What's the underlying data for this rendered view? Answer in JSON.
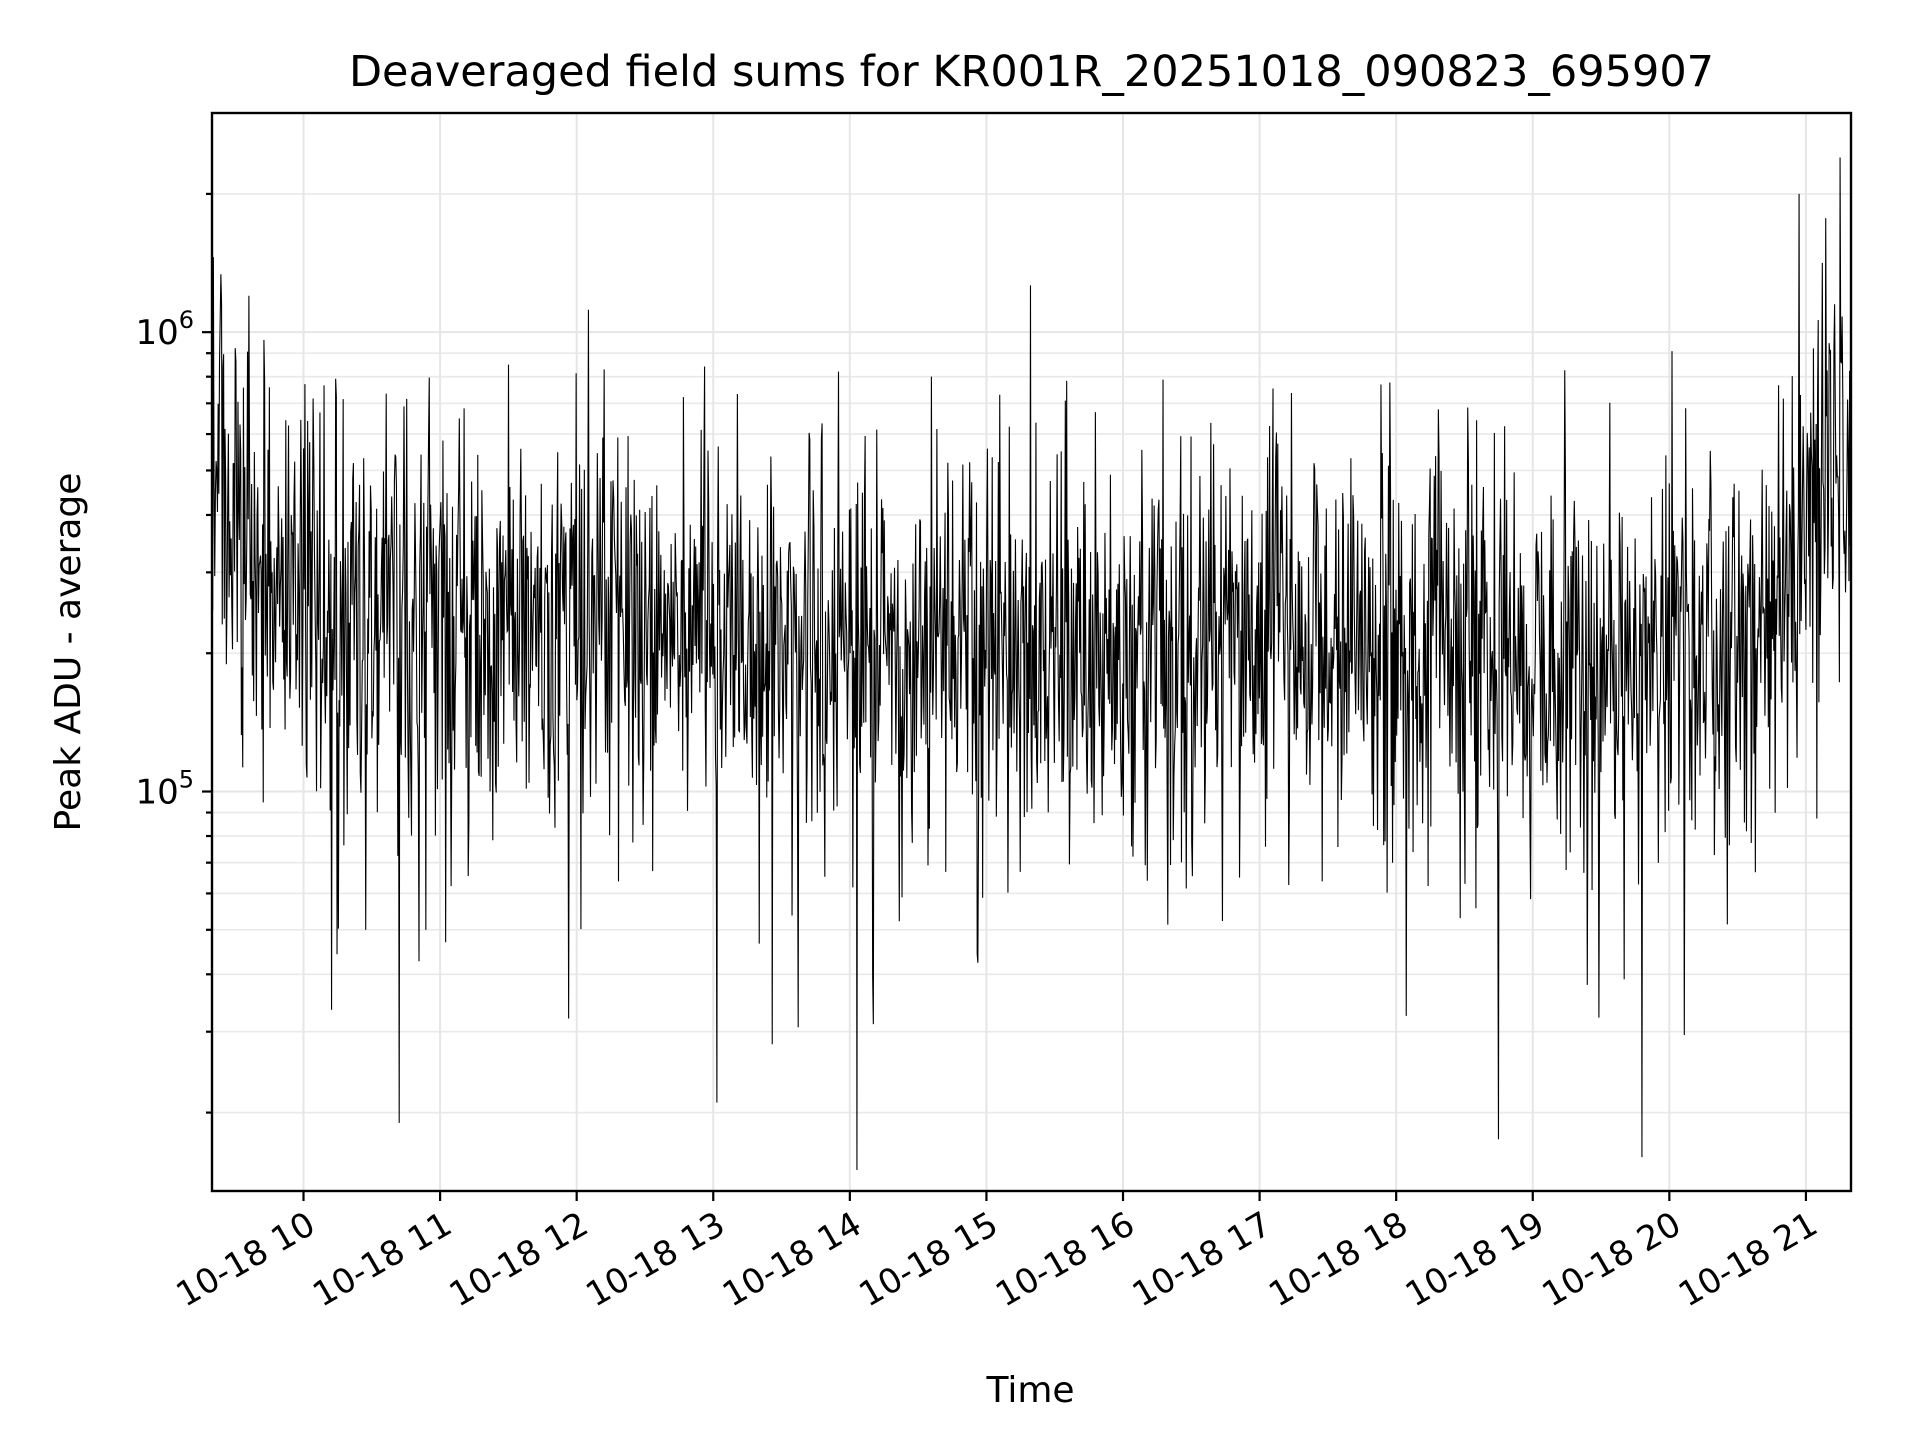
{
  "chart_data": {
    "type": "line",
    "title": "Deaveraged field sums for KR001R_20251018_090823_695907",
    "xlabel": "Time",
    "ylabel": "Peak ADU - average",
    "x_axis": {
      "kind": "datetime",
      "start_hour": 9.33,
      "end_hour": 21.33,
      "ticks": [
        {
          "hour": 10,
          "label": "10-18 10"
        },
        {
          "hour": 11,
          "label": "10-18 11"
        },
        {
          "hour": 12,
          "label": "10-18 12"
        },
        {
          "hour": 13,
          "label": "10-18 13"
        },
        {
          "hour": 14,
          "label": "10-18 14"
        },
        {
          "hour": 15,
          "label": "10-18 15"
        },
        {
          "hour": 16,
          "label": "10-18 16"
        },
        {
          "hour": 17,
          "label": "10-18 17"
        },
        {
          "hour": 18,
          "label": "10-18 18"
        },
        {
          "hour": 19,
          "label": "10-18 19"
        },
        {
          "hour": 20,
          "label": "10-18 20"
        },
        {
          "hour": 21,
          "label": "10-18 21"
        }
      ]
    },
    "y_axis": {
      "scale": "log",
      "ylim": [
        13500,
        3000000
      ],
      "major_ticks": [
        {
          "value": 100000,
          "base": "10",
          "exp": "5"
        },
        {
          "value": 1000000,
          "base": "10",
          "exp": "6"
        }
      ],
      "minor_ticks": [
        20000,
        30000,
        40000,
        50000,
        60000,
        70000,
        80000,
        90000,
        200000,
        300000,
        400000,
        500000,
        600000,
        700000,
        800000,
        900000,
        2000000
      ]
    },
    "grid": true,
    "series": [
      {
        "name": "field sums",
        "color": "#000000",
        "n_points": 2400,
        "baseline": [
          {
            "hour": 9.33,
            "value": 550000
          },
          {
            "hour": 9.6,
            "value": 300000
          },
          {
            "hour": 10.0,
            "value": 240000
          },
          {
            "hour": 11.0,
            "value": 215000
          },
          {
            "hour": 12.0,
            "value": 240000
          },
          {
            "hour": 13.0,
            "value": 215000
          },
          {
            "hour": 14.0,
            "value": 205000
          },
          {
            "hour": 15.0,
            "value": 205000
          },
          {
            "hour": 16.0,
            "value": 200000
          },
          {
            "hour": 17.0,
            "value": 225000
          },
          {
            "hour": 18.0,
            "value": 215000
          },
          {
            "hour": 19.0,
            "value": 195000
          },
          {
            "hour": 20.0,
            "value": 185000
          },
          {
            "hour": 20.5,
            "value": 210000
          },
          {
            "hour": 20.9,
            "value": 330000
          },
          {
            "hour": 21.1,
            "value": 500000
          },
          {
            "hour": 21.33,
            "value": 650000
          }
        ],
        "notable_points": [
          {
            "hour": 9.4,
            "value": 1150000
          },
          {
            "hour": 9.6,
            "value": 1200000
          },
          {
            "hour": 11.5,
            "value": 850000
          },
          {
            "hour": 12.2,
            "value": 830000
          },
          {
            "hour": 14.05,
            "value": 15000
          },
          {
            "hour": 10.7,
            "value": 19000
          },
          {
            "hour": 18.75,
            "value": 17500
          },
          {
            "hour": 19.8,
            "value": 16000
          },
          {
            "hour": 20.95,
            "value": 2000000
          },
          {
            "hour": 21.25,
            "value": 2400000
          }
        ]
      }
    ]
  }
}
